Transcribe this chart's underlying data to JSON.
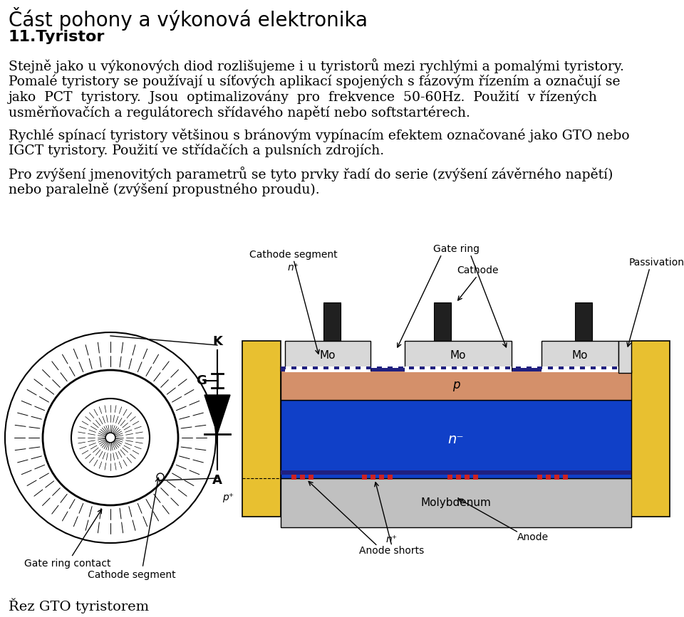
{
  "title_line1": "Část pohony a výkonová elektronika",
  "title_line2": "11.Tyristor",
  "body_paragraphs": [
    [
      "Stejně jako u výkonových diod rozlišujeme i u tyristorů mezi rychlými a pomalými tyristory.",
      "Pomalé tyristory se používají u síťových aplikací spojených s fázovým řízením a označují se",
      "jako  PCT  tyristory.  Jsou  optimalizovány  pro  frekvence  50-60Hz.  Použití  v řízených",
      "usměrňovačích a regulátorech sřídavého napětí nebo softstartérech."
    ],
    [
      "Rychlé spínací tyristory většinou s bránovým vypínacím efektem označované jako GTO nebo",
      "IGCT tyristory. Použití ve střídačích a pulsních zdrojích."
    ],
    [
      "Pro zvýšení jmenovitých parametrů se tyto prvky řadí do serie (zvýšení závěrného napětí)",
      "nebo paralelně (zvýšení propustného proudu)."
    ]
  ],
  "caption": "Řez GTO tyristorem",
  "bg_color": "#ffffff",
  "text_color": "#000000",
  "title1_fontsize": 20,
  "title2_fontsize": 16,
  "body_fontsize": 13.5,
  "caption_fontsize": 14,
  "yellow": "#E8C030",
  "salmon": "#D4906A",
  "blue": "#1040C8",
  "silver": "#C0C0C0",
  "dark_gray": "#202020",
  "red": "#CC2222",
  "light_gray": "#D8D8D8",
  "navy": "#202080"
}
